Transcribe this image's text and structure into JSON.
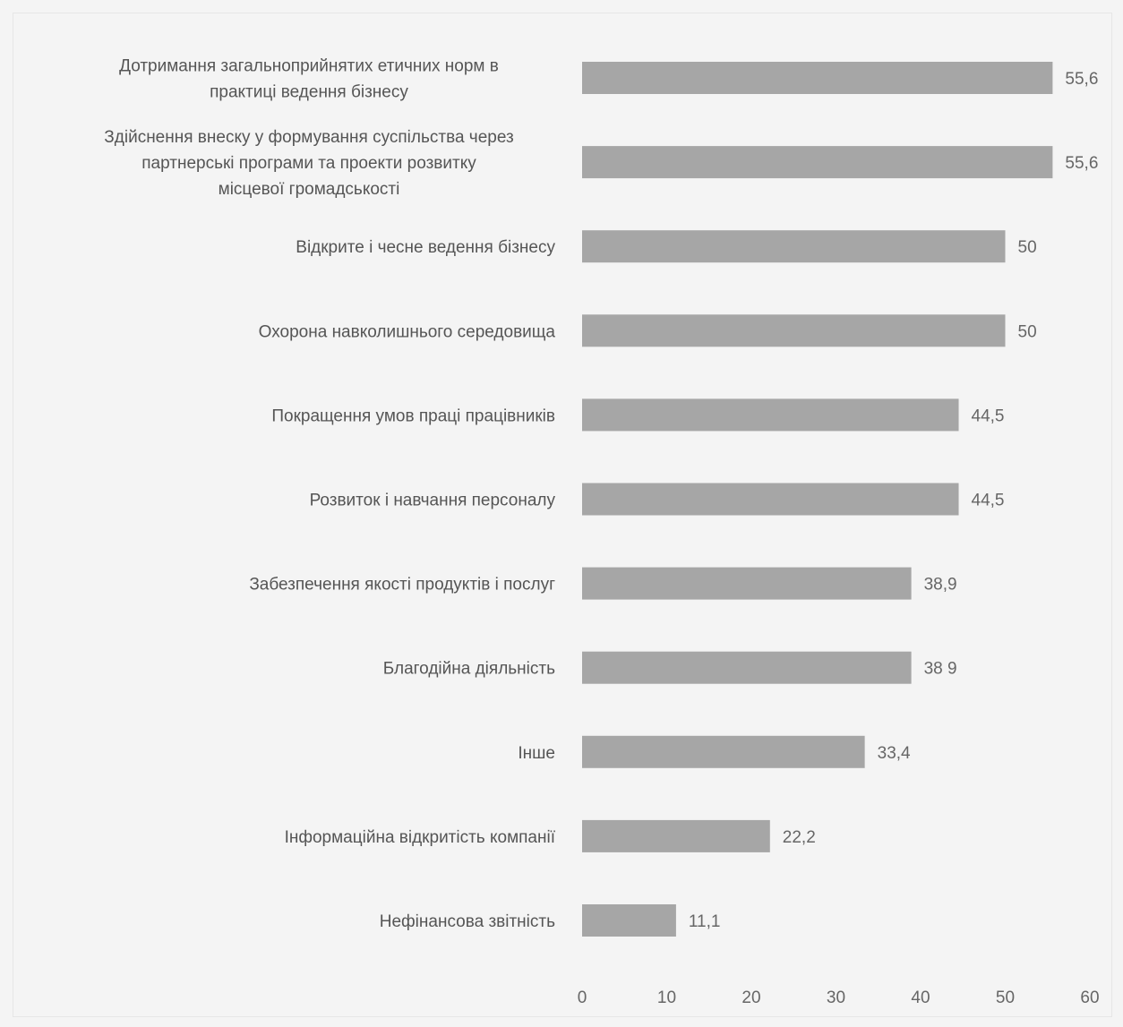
{
  "chart_data": {
    "type": "bar",
    "orientation": "horizontal",
    "categories": [
      [
        "Дотримання загальноприйнятих етичних норм в",
        "практиці ведення бізнесу"
      ],
      [
        "Здійснення внеску у формування суспільства через",
        "партнерські програми та проекти розвитку",
        "місцевої громадськості"
      ],
      [
        "Відкрите і чесне ведення бізнесу"
      ],
      [
        "Охорона навколишнього середовища"
      ],
      [
        "Покращення умов праці працівників"
      ],
      [
        "Розвиток і навчання персоналу"
      ],
      [
        "Забезпечення якості продуктів і послуг"
      ],
      [
        "Благодійна діяльність"
      ],
      [
        "Інше"
      ],
      [
        "Інформаційна відкритість компанії"
      ],
      [
        "Нефінансова звітність"
      ]
    ],
    "values": [
      55.6,
      55.6,
      50,
      50,
      44.5,
      44.5,
      38.9,
      38.9,
      33.4,
      22.2,
      11.1
    ],
    "value_labels": [
      "55,6",
      "55,6",
      "50",
      "50",
      "44,5",
      "44,5",
      "38,9",
      "38 9",
      "33,4",
      "22,2",
      "11,1"
    ],
    "xlim": [
      0,
      60
    ],
    "xticks": [
      0,
      10,
      20,
      30,
      40,
      50,
      60
    ],
    "grid": false,
    "bar_color": "#a6a6a6",
    "title": "",
    "xlabel": "",
    "ylabel": ""
  }
}
